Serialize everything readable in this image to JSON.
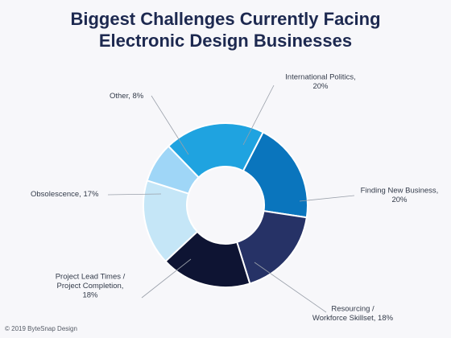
{
  "title_lines": [
    "Biggest Challenges Currently Facing",
    "Electronic Design Businesses"
  ],
  "copyright": "© 2019 ByteSnap Design",
  "chart_data": {
    "type": "pie",
    "donut": true,
    "title": "Biggest Challenges Currently Facing Electronic Design Businesses",
    "legend": "none",
    "slices": [
      {
        "name": "International Politics",
        "value": 20,
        "color": "#1fa3e0",
        "label_lines": [
          "International Politics,",
          "20%"
        ]
      },
      {
        "name": "Finding New Business",
        "value": 20,
        "color": "#0a75bd",
        "label_lines": [
          "Finding New Business,",
          "20%"
        ]
      },
      {
        "name": "Resourcing / Workforce Skillset",
        "value": 18,
        "color": "#263266",
        "label_lines": [
          "Resourcing /",
          "Workforce Skillset, 18%"
        ]
      },
      {
        "name": "Project Lead Times / Project Completion",
        "value": 18,
        "color": "#0e1433",
        "label_lines": [
          "Project Lead Times /",
          "Project Completion,",
          "18%"
        ]
      },
      {
        "name": "Obsolescence",
        "value": 17,
        "color": "#c5e6f7",
        "label_lines": [
          "Obsolescence, 17%"
        ]
      },
      {
        "name": "Other",
        "value": 8,
        "color": "#9fd6f7",
        "label_lines": [
          "Other, 8%"
        ]
      }
    ]
  }
}
